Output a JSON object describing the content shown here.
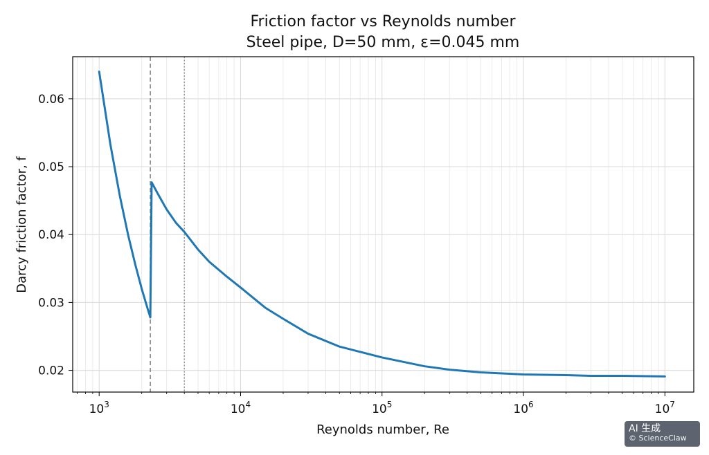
{
  "chart_data": {
    "type": "line",
    "title": "Friction factor vs Reynolds number",
    "subtitle": "Steel pipe, D=50 mm, ε=0.045 mm",
    "xlabel": "Reynolds number, Re",
    "ylabel": "Darcy friction factor, f",
    "xscale": "log",
    "xlim": [
      650,
      16000000
    ],
    "ylim": [
      0.0168,
      0.0662
    ],
    "xticks": [
      {
        "base": "10",
        "exp": "3",
        "value": 1000
      },
      {
        "base": "10",
        "exp": "4",
        "value": 10000
      },
      {
        "base": "10",
        "exp": "5",
        "value": 100000
      },
      {
        "base": "10",
        "exp": "6",
        "value": 1000000
      },
      {
        "base": "10",
        "exp": "7",
        "value": 10000000
      }
    ],
    "yticks": [
      {
        "label": "0.02",
        "value": 0.02
      },
      {
        "label": "0.03",
        "value": 0.03
      },
      {
        "label": "0.04",
        "value": 0.04
      },
      {
        "label": "0.05",
        "value": 0.05
      },
      {
        "label": "0.06",
        "value": 0.06
      }
    ],
    "grid": true,
    "vlines": [
      {
        "x": 2300,
        "style": "dashed",
        "color": "#808080"
      },
      {
        "x": 4000,
        "style": "dotted",
        "color": "#808080"
      }
    ],
    "series": [
      {
        "color": "#1f77b4",
        "points": [
          [
            1000,
            0.064
          ],
          [
            1200,
            0.0533
          ],
          [
            1400,
            0.0457
          ],
          [
            1600,
            0.04
          ],
          [
            1800,
            0.0356
          ],
          [
            2000,
            0.032
          ],
          [
            2200,
            0.0291
          ],
          [
            2300,
            0.0278
          ],
          [
            2350,
            0.0477
          ],
          [
            2600,
            0.046
          ],
          [
            3000,
            0.0437
          ],
          [
            3500,
            0.0417
          ],
          [
            4000,
            0.0404
          ],
          [
            5000,
            0.0378
          ],
          [
            6000,
            0.036
          ],
          [
            8000,
            0.0338
          ],
          [
            10000,
            0.0322
          ],
          [
            15000,
            0.0292
          ],
          [
            20000,
            0.0276
          ],
          [
            30000,
            0.0254
          ],
          [
            50000,
            0.0235
          ],
          [
            100000,
            0.0219
          ],
          [
            200000,
            0.0206
          ],
          [
            300000,
            0.0201
          ],
          [
            500000,
            0.0197
          ],
          [
            1000000,
            0.0194
          ],
          [
            2000000,
            0.0193
          ],
          [
            3000000,
            0.0192
          ],
          [
            5000000,
            0.0192
          ],
          [
            10000000,
            0.0191
          ]
        ]
      }
    ]
  },
  "watermark": {
    "line1": "AI 生成",
    "line2": "© ScienceClaw"
  }
}
